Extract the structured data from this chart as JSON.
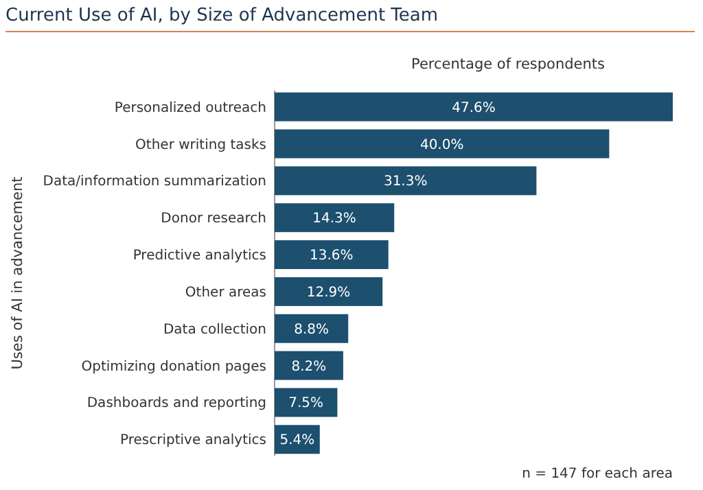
{
  "chart_data": {
    "type": "bar",
    "orientation": "horizontal",
    "title": "Current Use of AI, by Size of Advancement Team",
    "xlabel": "Percentage of respondents",
    "ylabel": "Uses of AI in advancement",
    "categories": [
      "Personalized outreach",
      "Other writing tasks",
      "Data/information summarization",
      "Donor research",
      "Predictive analytics",
      "Other areas",
      "Data collection",
      "Optimizing donation pages",
      "Dashboards and reporting",
      "Prescriptive analytics"
    ],
    "values": [
      47.6,
      40.0,
      31.3,
      14.3,
      13.6,
      12.9,
      8.8,
      8.2,
      7.5,
      5.4
    ],
    "value_labels": [
      "47.6%",
      "40.0%",
      "31.3%",
      "14.3%",
      "13.6%",
      "12.9%",
      "8.8%",
      "8.2%",
      "7.5%",
      "5.4%"
    ],
    "color": "#1d4f6e",
    "relative": false,
    "annotations": [
      "n = 147 for each area"
    ]
  }
}
